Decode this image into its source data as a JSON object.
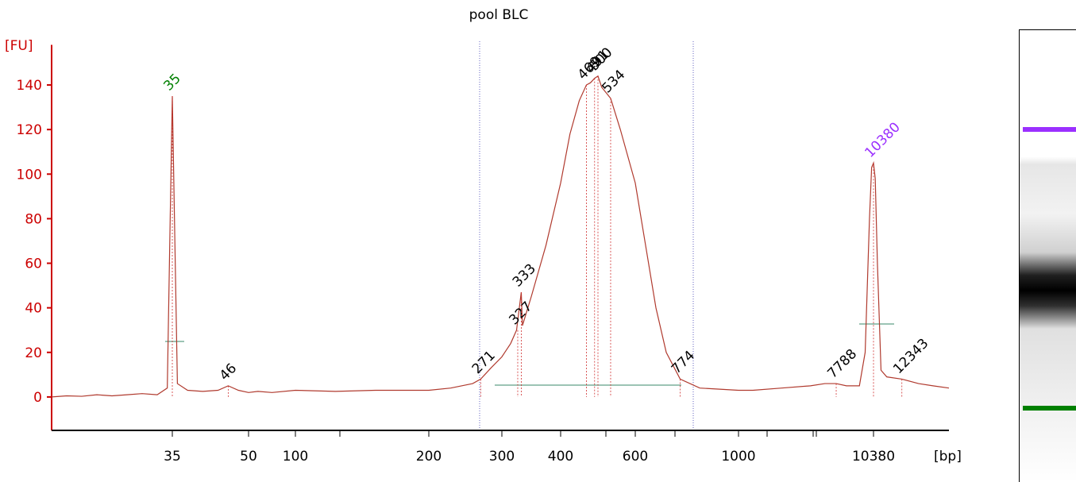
{
  "chart_data": {
    "type": "line",
    "title": "pool BLC",
    "y_label": "[FU]",
    "x_label": "[bp]",
    "axis_color": "#cc0000",
    "xlim": [
      11,
      15600
    ],
    "xticks": [
      35,
      50,
      100,
      200,
      300,
      400,
      600,
      1000,
      10380
    ],
    "ylim": [
      -15,
      158
    ],
    "yticks": [
      0,
      20,
      40,
      60,
      80,
      100,
      120,
      140
    ],
    "series": [
      {
        "color": "#b03a2e",
        "x": [
          11,
          14,
          17,
          20,
          23,
          26,
          29,
          32,
          34,
          34.5,
          35,
          35.5,
          36,
          38,
          41,
          44,
          46,
          48,
          50,
          60,
          75,
          100,
          130,
          160,
          200,
          230,
          260,
          271,
          285,
          300,
          315,
          325,
          333,
          335,
          350,
          375,
          400,
          425,
          450,
          469,
          480,
          491,
          500,
          510,
          534,
          560,
          600,
          640,
          680,
          720,
          774,
          850,
          1000,
          2000,
          4000,
          6000,
          7000,
          7788,
          8500,
          9400,
          9800,
          10100,
          10250,
          10380,
          10500,
          10650,
          10900,
          11300,
          12343,
          13500,
          14500,
          15600
        ],
        "values": [
          0,
          0.5,
          0.3,
          1,
          0.5,
          1,
          1.5,
          1,
          4,
          70,
          135,
          70,
          6,
          3,
          2.5,
          3,
          5,
          3,
          2,
          2.5,
          2,
          3,
          2.5,
          3,
          3,
          4,
          6,
          8,
          13,
          18,
          24,
          30,
          47,
          32,
          45,
          68,
          96,
          118,
          133,
          140,
          141,
          143,
          144,
          139,
          134,
          120,
          96,
          68,
          40,
          20,
          8,
          4,
          3,
          3,
          4,
          5,
          6,
          6,
          5,
          5,
          20,
          80,
          103,
          105,
          98,
          60,
          12,
          9,
          8,
          6,
          5,
          4
        ]
      }
    ],
    "peaks": [
      {
        "label": 35,
        "height": 135,
        "color": "#008000"
      },
      {
        "label": 46,
        "height": 5,
        "color": "#000000"
      },
      {
        "label": 271,
        "height": 8,
        "color": "#000000"
      },
      {
        "label": 327,
        "height": 30,
        "color": "#000000"
      },
      {
        "label": 333,
        "height": 47,
        "color": "#000000"
      },
      {
        "label": 469,
        "height": 140,
        "color": "#000000"
      },
      {
        "label": 491,
        "height": 143,
        "color": "#000000"
      },
      {
        "label": 500,
        "height": 144,
        "color": "#000000"
      },
      {
        "label": 534,
        "height": 134,
        "color": "#000000"
      },
      {
        "label": 774,
        "height": 8,
        "color": "#000000"
      },
      {
        "label": 7788,
        "height": 6,
        "color": "#000000"
      },
      {
        "label": 10380,
        "height": 105,
        "color": "#9b30ff"
      },
      {
        "label": 12343,
        "height": 8,
        "color": "#000000"
      }
    ]
  }
}
